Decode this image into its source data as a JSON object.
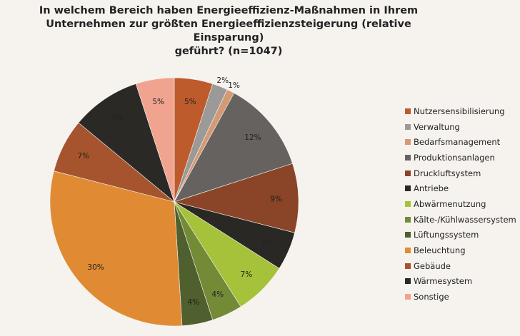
{
  "chart_data": {
    "type": "pie",
    "title": "In welchem Bereich haben Energieeffizienz-Maßnahmen in Ihrem Unternehmen zur größten Energieeffizienzsteigerung (relative Einsparung) geführt? (n=1047)",
    "title_lines": [
      "In welchem Bereich haben Energieeffizienz-Maßnahmen in Ihrem",
      "Unternehmen zur größten Energieeffizienzsteigerung (relative Einsparung)",
      "geführt? (n=1047)"
    ],
    "legend_position": "right",
    "start": "top, clockwise",
    "slices": [
      {
        "label": "Nutzersensibilisierung",
        "value": 5,
        "text": "5%",
        "color": "#bd5b2c"
      },
      {
        "label": "Verwaltung",
        "value": 2,
        "text": "2%",
        "color": "#9c9a98",
        "outside": true
      },
      {
        "label": "Bedarfsmanagement",
        "value": 1,
        "text": "1%",
        "color": "#d49a74",
        "outside": true
      },
      {
        "label": "Produktionsanlagen",
        "value": 12,
        "text": "12%",
        "color": "#66625f"
      },
      {
        "label": "Druckluftsystem",
        "value": 9,
        "text": "9%",
        "color": "#8a4427"
      },
      {
        "label": "Antriebe",
        "value": 5,
        "text": "5%",
        "color": "#2a2825"
      },
      {
        "label": "Abwärmenutzung",
        "value": 7,
        "text": "7%",
        "color": "#a5c23a"
      },
      {
        "label": "Kälte-/Kühlwassersystem",
        "value": 4,
        "text": "4%",
        "color": "#738a36"
      },
      {
        "label": "Lüftungssystem",
        "value": 4,
        "text": "4%",
        "color": "#4f5f2e"
      },
      {
        "label": "Beleuchtung",
        "value": 30,
        "text": "30%",
        "color": "#e08b33"
      },
      {
        "label": "Gebäude",
        "value": 7,
        "text": "7%",
        "color": "#a5542d"
      },
      {
        "label": "Wärmesystem",
        "value": 9,
        "text": "9%",
        "color": "#2b2926"
      },
      {
        "label": "Sonstige",
        "value": 5,
        "text": "5%",
        "color": "#f0a48f"
      }
    ]
  }
}
